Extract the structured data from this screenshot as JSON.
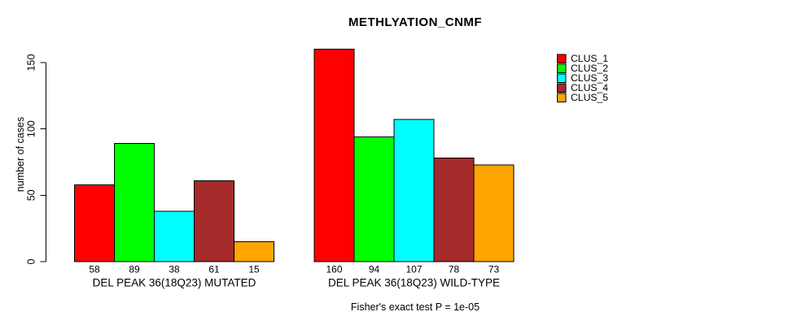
{
  "title": "METHLYATION_CNMF",
  "footer": "Fisher's exact test P = 1e-05",
  "y_axis": {
    "label": "number of cases",
    "tick_labels": [
      "0",
      "50",
      "100",
      "150"
    ]
  },
  "legend": {
    "position": "right",
    "items": [
      {
        "label": "CLUS_1",
        "color": "#ff0000"
      },
      {
        "label": "CLUS_2",
        "color": "#00ff00"
      },
      {
        "label": "CLUS_3",
        "color": "#00ffff"
      },
      {
        "label": "CLUS_4",
        "color": "#a52a2a"
      },
      {
        "label": "CLUS_5",
        "color": "#ffa500"
      }
    ]
  },
  "chart_data": {
    "type": "bar",
    "title": "METHLYATION_CNMF",
    "xlabel": "",
    "ylabel": "number of cases",
    "ylim": [
      0,
      163
    ],
    "yticks": [
      0,
      50,
      100,
      150
    ],
    "grid": false,
    "legend_position": "right",
    "bar_border_color": "#000000",
    "value_labels_shown": true,
    "categories": [
      "DEL PEAK 36(18Q23) MUTATED",
      "DEL PEAK 36(18Q23) WILD-TYPE"
    ],
    "series": [
      {
        "name": "CLUS_1",
        "color": "#ff0000",
        "values": [
          58,
          160
        ]
      },
      {
        "name": "CLUS_2",
        "color": "#00ff00",
        "values": [
          89,
          94
        ]
      },
      {
        "name": "CLUS_3",
        "color": "#00ffff",
        "values": [
          38,
          107
        ]
      },
      {
        "name": "CLUS_4",
        "color": "#a52a2a",
        "values": [
          61,
          78
        ]
      },
      {
        "name": "CLUS_5",
        "color": "#ffa500",
        "values": [
          15,
          73
        ]
      }
    ],
    "annotation": "Fisher's exact test P = 1e-05"
  }
}
